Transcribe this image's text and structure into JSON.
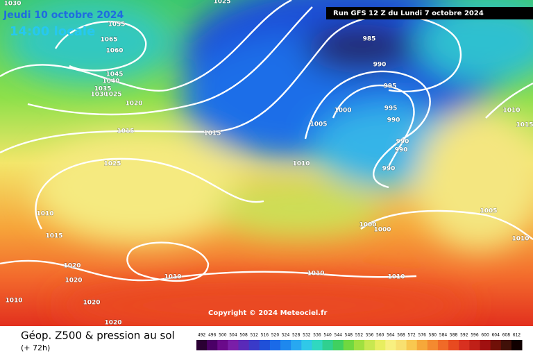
{
  "header": {
    "date": "Jeudi 10 octobre 2024",
    "time": "14:00 locale",
    "run": "Run GFS 12 Z du Lundi 7 octobre 2024"
  },
  "copyright": "Copyright © 2024 Meteociel.fr",
  "footer": {
    "title": "Géop. Z500 & pression au sol",
    "lead": "(+ 72h)"
  },
  "isobar_labels": [
    "1030",
    "1025",
    "1055",
    "1065",
    "1060",
    "1045",
    "1040",
    "1035",
    "1030",
    "1025",
    "1020",
    "1015",
    "1015",
    "1025",
    "1010",
    "1015",
    "1020",
    "1020",
    "1010",
    "1020",
    "1020",
    "1010",
    "1010",
    "1010",
    "1010",
    "1005",
    "1000",
    "985",
    "990",
    "995",
    "995",
    "990",
    "990",
    "990",
    "990",
    "1000",
    "1000",
    "1005",
    "1010",
    "1010",
    "1015"
  ],
  "colorbar_labels": [
    "492",
    "496",
    "500",
    "504",
    "508",
    "512",
    "516",
    "520",
    "524",
    "528",
    "532",
    "536",
    "540",
    "544",
    "548",
    "552",
    "556",
    "560",
    "564",
    "568",
    "572",
    "576",
    "580",
    "584",
    "588",
    "592",
    "596",
    "600",
    "604",
    "608",
    "612"
  ]
}
